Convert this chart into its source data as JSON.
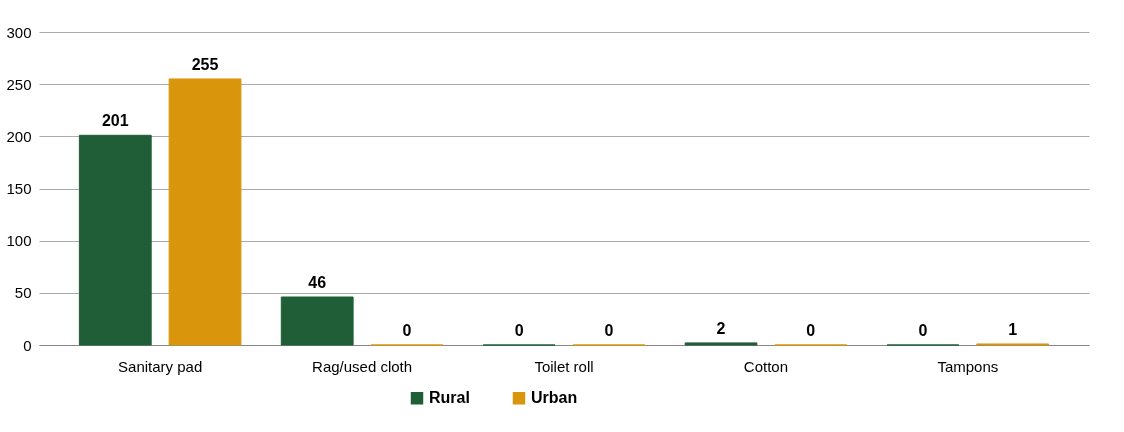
{
  "chart_data": {
    "type": "bar",
    "categories": [
      "Sanitary pad",
      "Rag/used cloth",
      "Toilet roll",
      "Cotton",
      "Tampons"
    ],
    "series": [
      {
        "name": "Rural",
        "color": "#1f5e36",
        "values": [
          201,
          46,
          0,
          2,
          0
        ]
      },
      {
        "name": "Urban",
        "color": "#d9960c",
        "values": [
          255,
          0,
          0,
          0,
          1
        ]
      }
    ],
    "ylim": [
      0,
      300
    ],
    "yticks": [
      0,
      50,
      100,
      150,
      200,
      250,
      300
    ],
    "grid": "y",
    "legend": "bottom",
    "data_labels": true
  }
}
